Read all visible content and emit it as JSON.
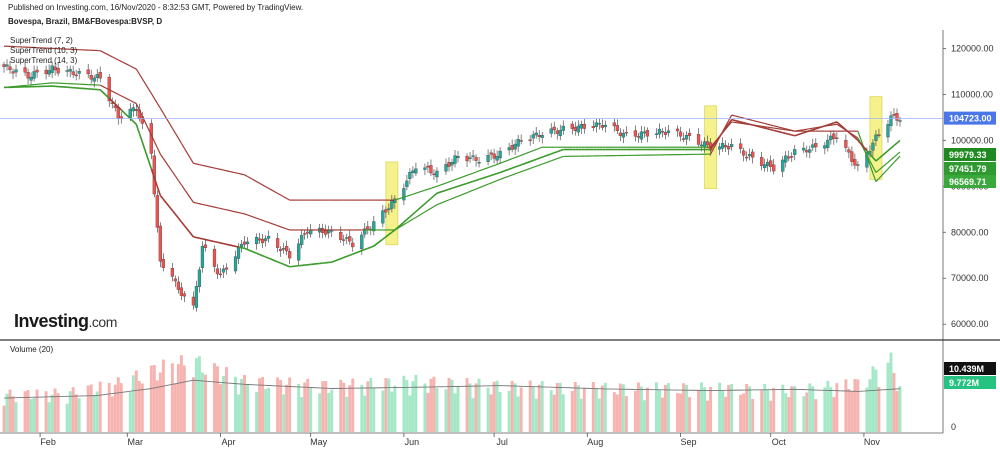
{
  "header": {
    "published": "Published on Investing.com, 16/Nov/2020 - 8:32:53 GMT, Powered by TradingView.",
    "symbol": "Bovespa, Brazil, BM&FBovespa:BVSP, D"
  },
  "legend": {
    "st1": "SuperTrend (7, 2)",
    "st2": "SuperTrend (10, 3)",
    "st3": "SuperTrend (14, 3)",
    "volume": "Volume (20)"
  },
  "logo": {
    "text": "Investing",
    "domain": ".com"
  },
  "colors": {
    "up": "#26a69a",
    "down": "#ef5350",
    "vol_up": "#a5e8c8",
    "vol_down": "#f6b3b0",
    "st_up": "#3a9a2a",
    "st_down": "#a33a35",
    "highlight": "#f4ef7a",
    "last_line": "#9fb4ff"
  },
  "chart_data": [
    {
      "type": "candlestick",
      "title": "Bovespa, Brazil, BM&FBovespa:BVSP, D",
      "x_ticks": [
        "Feb",
        "Mar",
        "Apr",
        "May",
        "Jun",
        "Jul",
        "Aug",
        "Sep",
        "Oct",
        "Nov"
      ],
      "y_ticks": [
        "60000.00",
        "70000.00",
        "80000.00",
        "90000.00",
        "100000.00",
        "110000.00",
        "120000.00"
      ],
      "ylim": [
        57000,
        124000
      ],
      "last_price_label": "104723.00",
      "last_price": 104723,
      "indicator_labels": [
        "99979.33",
        "97451.79",
        "96569.71"
      ],
      "indicator_values": [
        99979.33,
        97451.79,
        96569.71
      ],
      "close_path": [
        [
          "2020-01-20",
          116000
        ],
        [
          "2020-01-28",
          114000
        ],
        [
          "2020-02-05",
          115500
        ],
        [
          "2020-02-14",
          114500
        ],
        [
          "2020-02-21",
          113500
        ],
        [
          "2020-02-27",
          105000
        ],
        [
          "2020-03-04",
          107000
        ],
        [
          "2020-03-09",
          97000
        ],
        [
          "2020-03-12",
          73000
        ],
        [
          "2020-03-16",
          71000
        ],
        [
          "2020-03-18",
          67000
        ],
        [
          "2020-03-20",
          66500
        ],
        [
          "2020-03-23",
          63500
        ],
        [
          "2020-03-26",
          77000
        ],
        [
          "2020-04-01",
          70500
        ],
        [
          "2020-04-09",
          78000
        ],
        [
          "2020-04-17",
          78500
        ],
        [
          "2020-04-24",
          75000
        ],
        [
          "2020-04-30",
          80500
        ],
        [
          "2020-05-08",
          80000
        ],
        [
          "2020-05-15",
          77500
        ],
        [
          "2020-05-22",
          82000
        ],
        [
          "2020-05-29",
          87000
        ],
        [
          "2020-06-05",
          94500
        ],
        [
          "2020-06-12",
          92800
        ],
        [
          "2020-06-19",
          96500
        ],
        [
          "2020-06-26",
          95800
        ],
        [
          "2020-07-03",
          97000
        ],
        [
          "2020-07-10",
          100000
        ],
        [
          "2020-07-17",
          101500
        ],
        [
          "2020-07-24",
          102400
        ],
        [
          "2020-07-31",
          103000
        ],
        [
          "2020-08-07",
          103500
        ],
        [
          "2020-08-14",
          101000
        ],
        [
          "2020-08-21",
          101500
        ],
        [
          "2020-08-28",
          102000
        ],
        [
          "2020-09-04",
          100500
        ],
        [
          "2020-09-11",
          98500
        ],
        [
          "2020-09-18",
          98800
        ],
        [
          "2020-09-25",
          96000
        ],
        [
          "2020-10-02",
          94000
        ],
        [
          "2020-10-09",
          97500
        ],
        [
          "2020-10-16",
          98500
        ],
        [
          "2020-10-23",
          101000
        ],
        [
          "2020-10-30",
          93900
        ],
        [
          "2020-11-05",
          100500
        ],
        [
          "2020-11-10",
          105000
        ],
        [
          "2020-11-13",
          104723
        ]
      ],
      "supertrend_7_2": [
        [
          "2020-01-20",
          111500
        ],
        [
          "2020-02-05",
          111800
        ],
        [
          "2020-02-21",
          111000
        ],
        [
          "2020-03-04",
          103500
        ],
        [
          "2020-03-12",
          88000
        ],
        [
          "2020-03-23",
          79000
        ],
        [
          "2020-04-09",
          76500
        ],
        [
          "2020-04-24",
          72500
        ],
        [
          "2020-05-08",
          73500
        ],
        [
          "2020-05-22",
          77000
        ],
        [
          "2020-05-29",
          80500
        ],
        [
          "2020-06-12",
          88500
        ],
        [
          "2020-07-03",
          93000
        ],
        [
          "2020-07-24",
          98000
        ],
        [
          "2020-09-11",
          98000
        ],
        [
          "2020-09-18",
          104500
        ],
        [
          "2020-10-09",
          101000
        ],
        [
          "2020-10-23",
          104000
        ],
        [
          "2020-10-30",
          100000
        ],
        [
          "2020-11-05",
          95500
        ],
        [
          "2020-11-13",
          99979.33
        ]
      ],
      "supertrend_10_3": [
        [
          "2020-01-20",
          111500
        ],
        [
          "2020-02-05",
          112500
        ],
        [
          "2020-02-21",
          112000
        ],
        [
          "2020-03-04",
          108000
        ],
        [
          "2020-03-12",
          97000
        ],
        [
          "2020-03-23",
          86500
        ],
        [
          "2020-04-09",
          84000
        ],
        [
          "2020-04-24",
          80500
        ],
        [
          "2020-05-29",
          80500
        ],
        [
          "2020-06-12",
          86000
        ],
        [
          "2020-07-03",
          91500
        ],
        [
          "2020-07-24",
          96500
        ],
        [
          "2020-09-11",
          97000
        ],
        [
          "2020-09-18",
          105500
        ],
        [
          "2020-10-09",
          102000
        ],
        [
          "2020-10-23",
          103500
        ],
        [
          "2020-10-30",
          100500
        ],
        [
          "2020-11-05",
          93000
        ],
        [
          "2020-11-13",
          97451.79
        ]
      ],
      "supertrend_14_3": [
        [
          "2020-01-20",
          120500
        ],
        [
          "2020-02-05",
          120000
        ],
        [
          "2020-02-21",
          119500
        ],
        [
          "2020-03-04",
          115500
        ],
        [
          "2020-03-12",
          107000
        ],
        [
          "2020-03-23",
          95000
        ],
        [
          "2020-04-09",
          92500
        ],
        [
          "2020-04-24",
          87000
        ],
        [
          "2020-05-29",
          87000
        ],
        [
          "2020-06-05",
          88500
        ],
        [
          "2020-06-12",
          90000
        ],
        [
          "2020-07-03",
          95000
        ],
        [
          "2020-07-17",
          98500
        ],
        [
          "2020-09-11",
          98500
        ],
        [
          "2020-09-18",
          104000
        ],
        [
          "2020-10-09",
          102000
        ],
        [
          "2020-10-30",
          102000
        ],
        [
          "2020-11-05",
          91000
        ],
        [
          "2020-11-13",
          96569.71
        ]
      ],
      "highlights": [
        "2020-05-28",
        "2020-09-11",
        "2020-11-05"
      ]
    },
    {
      "type": "bar",
      "title": "Volume (20)",
      "y_ticks": [
        "0"
      ],
      "ylim": [
        0,
        21000000
      ],
      "volume_labels": [
        "10.439M",
        "9.772M"
      ],
      "volume_values": [
        10439000,
        9772000
      ],
      "volume_path": [
        [
          "2020-01-20",
          8500000
        ],
        [
          "2020-02-10",
          8800000
        ],
        [
          "2020-02-27",
          11000000
        ],
        [
          "2020-03-12",
          14500000
        ],
        [
          "2020-03-23",
          16000000
        ],
        [
          "2020-04-09",
          11500000
        ],
        [
          "2020-05-08",
          10500000
        ],
        [
          "2020-06-05",
          11500000
        ],
        [
          "2020-07-03",
          10500000
        ],
        [
          "2020-08-07",
          10000000
        ],
        [
          "2020-09-11",
          10000000
        ],
        [
          "2020-10-09",
          9500000
        ],
        [
          "2020-10-30",
          11000000
        ],
        [
          "2020-11-10",
          16000000
        ],
        [
          "2020-11-13",
          9772000
        ]
      ],
      "volume_ma_path": [
        [
          "2020-01-20",
          8200000
        ],
        [
          "2020-02-20",
          8800000
        ],
        [
          "2020-03-09",
          10500000
        ],
        [
          "2020-03-23",
          12500000
        ],
        [
          "2020-04-09",
          11500000
        ],
        [
          "2020-05-08",
          10500000
        ],
        [
          "2020-06-05",
          10800000
        ],
        [
          "2020-07-03",
          11200000
        ],
        [
          "2020-08-07",
          10400000
        ],
        [
          "2020-09-11",
          10000000
        ],
        [
          "2020-10-09",
          10300000
        ],
        [
          "2020-10-30",
          9800000
        ],
        [
          "2020-11-13",
          10439000
        ]
      ]
    }
  ]
}
